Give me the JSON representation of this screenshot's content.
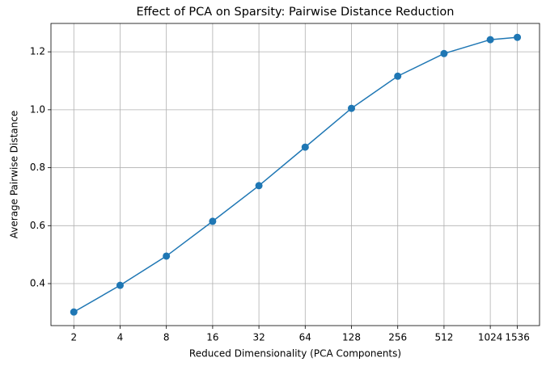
{
  "chart_data": {
    "type": "line",
    "title": "Effect of PCA on Sparsity: Pairwise Distance Reduction",
    "xlabel": "Reduced Dimensionality (PCA Components)",
    "ylabel": "Average Pairwise Distance",
    "x": [
      2,
      4,
      8,
      16,
      32,
      64,
      128,
      256,
      512,
      1024,
      1536
    ],
    "series": [
      {
        "name": "Average Pairwise Distance",
        "color": "#1f77b4",
        "values": [
          0.302,
          0.394,
          0.495,
          0.615,
          0.738,
          0.871,
          1.005,
          1.116,
          1.194,
          1.242,
          1.25
        ]
      }
    ],
    "xscale": "log",
    "xlim": [
      1.42,
      2141
    ],
    "xticks": [
      2,
      4,
      8,
      16,
      32,
      64,
      128,
      256,
      512,
      1024,
      1536
    ],
    "ylim": [
      0.255,
      1.298
    ],
    "yticks": [
      0.4,
      0.6,
      0.8,
      {
        "value": 1,
        "label": "1.0"
      },
      1.2
    ],
    "grid": true
  }
}
